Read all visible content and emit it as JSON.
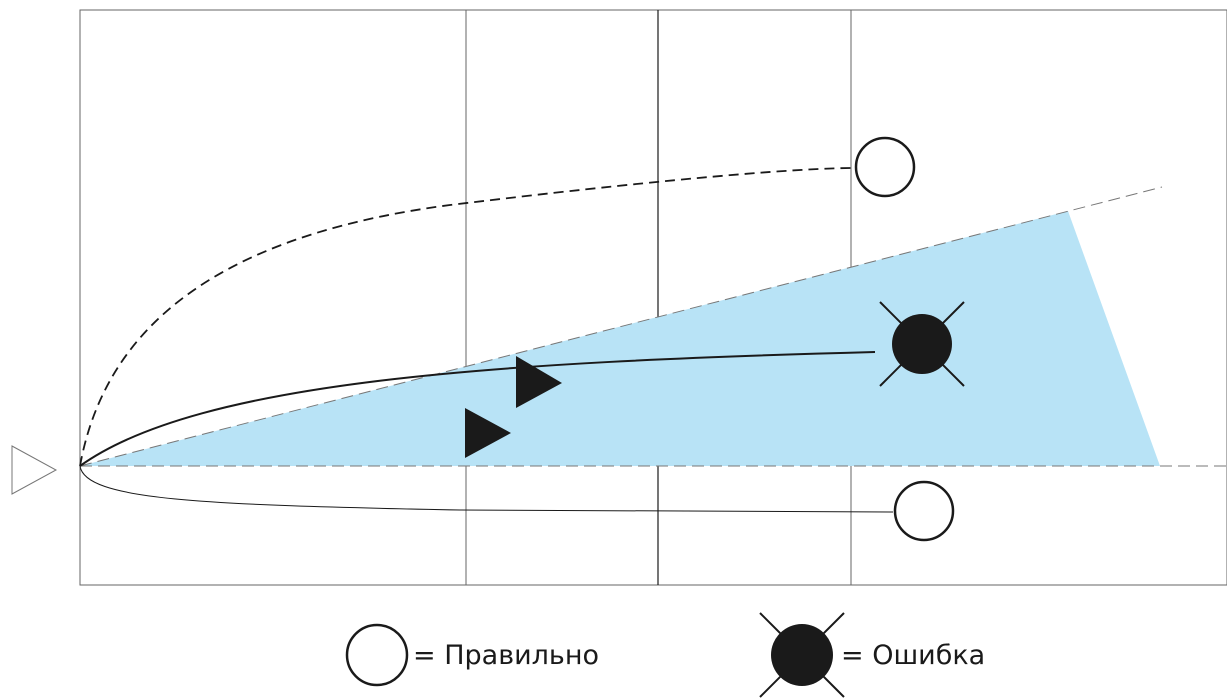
{
  "colors": {
    "zone_fill": "#b8e3f6",
    "ink": "#1a1a1a",
    "grid": "#666666",
    "background": "#ffffff"
  },
  "markers": {
    "correct": "open-circle",
    "error": "filled-circle-with-x",
    "player": "filled-triangle",
    "origin": "open-triangle"
  },
  "legend": {
    "correct_label": "= Правильно",
    "error_label": "= Ошибка"
  }
}
